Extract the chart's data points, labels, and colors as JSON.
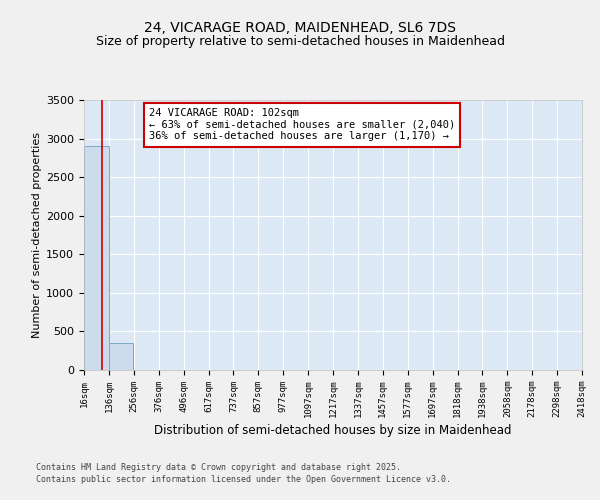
{
  "title_line1": "24, VICARAGE ROAD, MAIDENHEAD, SL6 7DS",
  "title_line2": "Size of property relative to semi-detached houses in Maidenhead",
  "xlabel": "Distribution of semi-detached houses by size in Maidenhead",
  "ylabel": "Number of semi-detached properties",
  "annotation_title": "24 VICARAGE ROAD: 102sqm",
  "annotation_line2": "← 63% of semi-detached houses are smaller (2,040)",
  "annotation_line3": "36% of semi-detached houses are larger (1,170) →",
  "property_size": 102,
  "bar_edges": [
    16,
    136,
    256,
    376,
    496,
    617,
    737,
    857,
    977,
    1097,
    1217,
    1337,
    1457,
    1577,
    1697,
    1818,
    1938,
    2058,
    2178,
    2298,
    2418
  ],
  "bar_heights": [
    2900,
    350,
    0,
    0,
    0,
    0,
    0,
    0,
    0,
    0,
    0,
    0,
    0,
    0,
    0,
    0,
    0,
    0,
    0,
    0
  ],
  "bar_color": "#ccdcec",
  "bar_edge_color": "#7aaac8",
  "vline_color": "#cc0000",
  "ylim": [
    0,
    3500
  ],
  "yticks": [
    0,
    500,
    1000,
    1500,
    2000,
    2500,
    3000,
    3500
  ],
  "background_color": "#f0f0f0",
  "plot_bg_color": "#dce8f4",
  "grid_color": "#ffffff",
  "title_fontsize": 10,
  "subtitle_fontsize": 9,
  "footnote1": "Contains HM Land Registry data © Crown copyright and database right 2025.",
  "footnote2": "Contains public sector information licensed under the Open Government Licence v3.0."
}
